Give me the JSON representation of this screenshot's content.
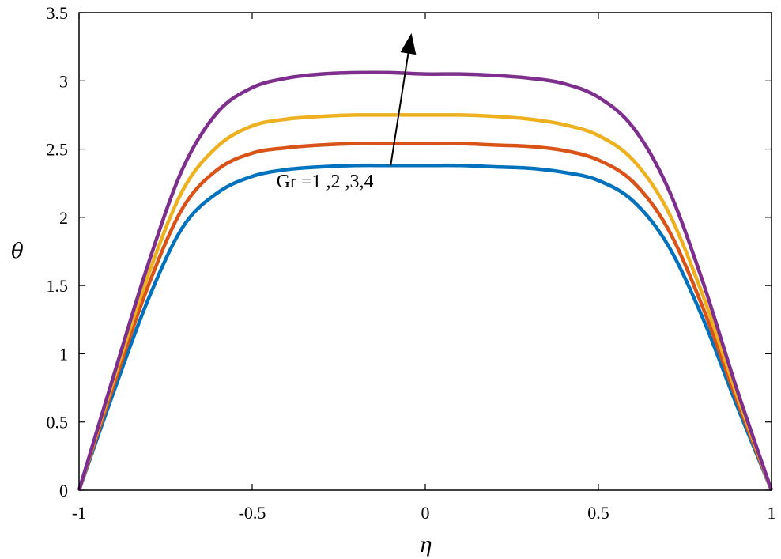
{
  "chart_data": {
    "type": "line",
    "title": "",
    "xlabel": "η",
    "ylabel": "θ",
    "xlim": [
      -1,
      1
    ],
    "ylim": [
      0,
      3.5
    ],
    "xticks": [
      "-1",
      "-0.5",
      "0",
      "0.5",
      "1"
    ],
    "yticks": [
      "0",
      "0.5",
      "1",
      "1.5",
      "2",
      "2.5",
      "3",
      "3.5"
    ],
    "grid": false,
    "annotation": {
      "text": "Gr =1 ,2 ,3,4",
      "arrow_from": [
        -0.1,
        2.38
      ],
      "arrow_to": [
        -0.04,
        3.35
      ]
    },
    "x": [
      -1,
      -0.9,
      -0.8,
      -0.7,
      -0.6,
      -0.5,
      -0.4,
      -0.3,
      -0.2,
      -0.1,
      0,
      0.1,
      0.2,
      0.3,
      0.4,
      0.5,
      0.6,
      0.7,
      0.8,
      0.9,
      1
    ],
    "series": [
      {
        "color": "#0072BD",
        "values": [
          0,
          0.72,
          1.4,
          1.93,
          2.18,
          2.3,
          2.35,
          2.37,
          2.38,
          2.38,
          2.38,
          2.38,
          2.37,
          2.36,
          2.33,
          2.27,
          2.12,
          1.8,
          1.27,
          0.62,
          0
        ]
      },
      {
        "color": "#D95319",
        "values": [
          0,
          0.77,
          1.5,
          2.07,
          2.35,
          2.47,
          2.51,
          2.53,
          2.54,
          2.54,
          2.54,
          2.54,
          2.53,
          2.52,
          2.49,
          2.42,
          2.26,
          1.92,
          1.35,
          0.66,
          0
        ]
      },
      {
        "color": "#EDB120",
        "values": [
          0,
          0.81,
          1.58,
          2.2,
          2.52,
          2.67,
          2.72,
          2.74,
          2.75,
          2.75,
          2.75,
          2.75,
          2.74,
          2.72,
          2.68,
          2.6,
          2.42,
          2.05,
          1.44,
          0.7,
          0
        ]
      },
      {
        "color": "#7E2F8E",
        "values": [
          0,
          0.84,
          1.66,
          2.36,
          2.77,
          2.95,
          3.02,
          3.05,
          3.06,
          3.06,
          3.05,
          3.05,
          3.04,
          3.02,
          2.98,
          2.88,
          2.66,
          2.22,
          1.54,
          0.74,
          0
        ]
      }
    ]
  }
}
